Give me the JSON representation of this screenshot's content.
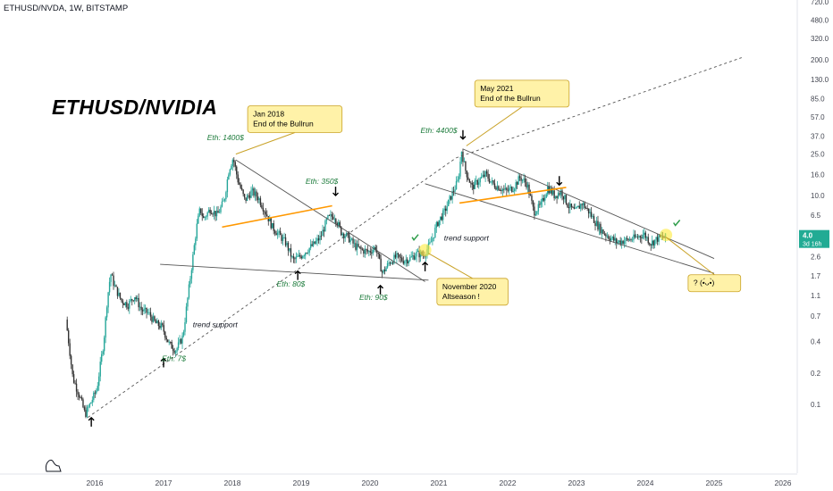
{
  "header": {
    "symbol_line": "ETHUSD/NVDA, 1W, BITSTAMP"
  },
  "chart_data": {
    "type": "candlestick",
    "title": "ETHUSD/NVIDIA",
    "y_scale": "log",
    "ylim": [
      0.05,
      700
    ],
    "xlim": [
      2015.5,
      2026.5
    ],
    "y_ticks": [
      "720.0",
      "480.0",
      "320.0",
      "200.0",
      "130.0",
      "85.0",
      "57.0",
      "37.0",
      "25.0",
      "16.0",
      "10.0",
      "6.5",
      "2.6",
      "1.7",
      "1.1",
      "0.7",
      "0.4",
      "0.2",
      "0.1"
    ],
    "y_tick_values": [
      720,
      480,
      320,
      200,
      130,
      85,
      57,
      37,
      25,
      16,
      10,
      6.5,
      2.6,
      1.7,
      1.1,
      0.7,
      0.4,
      0.2,
      0.1
    ],
    "x_ticks": [
      "2016",
      "2017",
      "2018",
      "2019",
      "2020",
      "2021",
      "2022",
      "2023",
      "2024",
      "2025",
      "2026"
    ],
    "x_tick_values": [
      2016,
      2017,
      2018,
      2019,
      2020,
      2021,
      2022,
      2023,
      2024,
      2025,
      2026
    ],
    "colors": {
      "up": "#26a69a",
      "down": "#333333",
      "orange_line": "#ff9800",
      "trend_line": "#555555",
      "label_bg": "#fff2a8",
      "label_border": "#c9a227",
      "green_text": "#1b7a3a",
      "current_price_bg": "#22ab94"
    },
    "price_path": [
      [
        2015.6,
        0.65
      ],
      [
        2015.65,
        0.35
      ],
      [
        2015.7,
        0.18
      ],
      [
        2015.8,
        0.12
      ],
      [
        2015.88,
        0.08
      ],
      [
        2015.95,
        0.1
      ],
      [
        2016.05,
        0.14
      ],
      [
        2016.15,
        0.4
      ],
      [
        2016.2,
        1.0
      ],
      [
        2016.25,
        1.8
      ],
      [
        2016.3,
        1.4
      ],
      [
        2016.4,
        1.0
      ],
      [
        2016.5,
        0.9
      ],
      [
        2016.6,
        1.1
      ],
      [
        2016.7,
        0.8
      ],
      [
        2016.8,
        0.75
      ],
      [
        2016.9,
        0.6
      ],
      [
        2017.0,
        0.55
      ],
      [
        2017.1,
        0.38
      ],
      [
        2017.2,
        0.33
      ],
      [
        2017.3,
        0.45
      ],
      [
        2017.4,
        1.5
      ],
      [
        2017.5,
        5.0
      ],
      [
        2017.55,
        7.5
      ],
      [
        2017.6,
        6.0
      ],
      [
        2017.7,
        7.5
      ],
      [
        2017.8,
        6.5
      ],
      [
        2017.9,
        9.0
      ],
      [
        2017.97,
        18.0
      ],
      [
        2018.03,
        23.0
      ],
      [
        2018.1,
        14.0
      ],
      [
        2018.2,
        9.0
      ],
      [
        2018.3,
        11.0
      ],
      [
        2018.4,
        9.5
      ],
      [
        2018.5,
        7.0
      ],
      [
        2018.6,
        5.0
      ],
      [
        2018.7,
        4.2
      ],
      [
        2018.8,
        3.5
      ],
      [
        2018.9,
        2.4
      ],
      [
        2019.0,
        2.6
      ],
      [
        2019.1,
        3.0
      ],
      [
        2019.2,
        3.4
      ],
      [
        2019.3,
        4.0
      ],
      [
        2019.4,
        6.0
      ],
      [
        2019.5,
        6.5
      ],
      [
        2019.6,
        4.5
      ],
      [
        2019.7,
        4.0
      ],
      [
        2019.8,
        3.3
      ],
      [
        2019.9,
        3.0
      ],
      [
        2020.0,
        2.9
      ],
      [
        2020.1,
        3.2
      ],
      [
        2020.2,
        1.8
      ],
      [
        2020.3,
        2.3
      ],
      [
        2020.4,
        2.6
      ],
      [
        2020.5,
        2.4
      ],
      [
        2020.6,
        2.5
      ],
      [
        2020.7,
        2.8
      ],
      [
        2020.8,
        2.7
      ],
      [
        2020.9,
        3.5
      ],
      [
        2021.0,
        5.5
      ],
      [
        2021.1,
        7.0
      ],
      [
        2021.2,
        10.0
      ],
      [
        2021.3,
        14.0
      ],
      [
        2021.35,
        27.0
      ],
      [
        2021.4,
        18.0
      ],
      [
        2021.5,
        12.0
      ],
      [
        2021.6,
        14.0
      ],
      [
        2021.7,
        16.0
      ],
      [
        2021.8,
        13.0
      ],
      [
        2021.9,
        12.0
      ],
      [
        2022.0,
        11.0
      ],
      [
        2022.1,
        12.0
      ],
      [
        2022.2,
        15.0
      ],
      [
        2022.3,
        13.0
      ],
      [
        2022.4,
        7.0
      ],
      [
        2022.5,
        8.0
      ],
      [
        2022.6,
        12.0
      ],
      [
        2022.7,
        10.0
      ],
      [
        2022.8,
        11.0
      ],
      [
        2022.9,
        8.0
      ],
      [
        2023.0,
        7.0
      ],
      [
        2023.1,
        8.5
      ],
      [
        2023.2,
        7.0
      ],
      [
        2023.3,
        5.5
      ],
      [
        2023.4,
        4.5
      ],
      [
        2023.5,
        4.0
      ],
      [
        2023.6,
        3.6
      ],
      [
        2023.7,
        3.7
      ],
      [
        2023.8,
        3.8
      ],
      [
        2023.9,
        4.0
      ],
      [
        2024.0,
        4.3
      ],
      [
        2024.1,
        3.5
      ],
      [
        2024.2,
        3.9
      ],
      [
        2024.3,
        4.0
      ]
    ],
    "trend_lines": [
      {
        "from": [
          2015.9,
          0.075
        ],
        "to": [
          2021.25,
          23.0
        ],
        "style": "dashed"
      },
      {
        "from": [
          2021.25,
          23.0
        ],
        "to": [
          2025.4,
          210.0
        ],
        "style": "dashed"
      },
      {
        "from": [
          2018.05,
          22.0
        ],
        "to": [
          2020.8,
          1.5
        ],
        "style": "solid"
      },
      {
        "from": [
          2016.95,
          2.2
        ],
        "to": [
          2020.85,
          1.55
        ],
        "style": "solid"
      },
      {
        "from": [
          2021.35,
          28.0
        ],
        "to": [
          2025.0,
          2.5
        ],
        "style": "solid"
      },
      {
        "from": [
          2020.8,
          13.0
        ],
        "to": [
          2025.0,
          1.8
        ],
        "style": "solid"
      }
    ],
    "orange_lines": [
      {
        "from": [
          2017.85,
          5.0
        ],
        "to": [
          2019.45,
          8.0
        ]
      },
      {
        "from": [
          2021.3,
          8.5
        ],
        "to": [
          2022.85,
          12.0
        ]
      }
    ],
    "arrows": [
      {
        "at": [
          2015.95,
          0.065
        ],
        "dir": "up"
      },
      {
        "at": [
          2017.0,
          0.24
        ],
        "dir": "up"
      },
      {
        "at": [
          2018.95,
          1.65
        ],
        "dir": "up"
      },
      {
        "at": [
          2020.15,
          1.2
        ],
        "dir": "up"
      },
      {
        "at": [
          2020.8,
          2.0
        ],
        "dir": "up"
      },
      {
        "at": [
          2019.5,
          11.5
        ],
        "dir": "down"
      },
      {
        "at": [
          2021.35,
          40.0
        ],
        "dir": "down"
      },
      {
        "at": [
          2022.75,
          14.5
        ],
        "dir": "down"
      }
    ],
    "green_labels": [
      {
        "text": "Eth: 1400$",
        "at": [
          2017.9,
          34.0
        ]
      },
      {
        "text": "Eth: 350$",
        "at": [
          2019.3,
          13.0
        ]
      },
      {
        "text": "Eth: 80$",
        "at": [
          2018.85,
          1.35
        ]
      },
      {
        "text": "Eth: 90$",
        "at": [
          2020.05,
          1.0
        ]
      },
      {
        "text": "Eth: 7$",
        "at": [
          2017.15,
          0.26
        ]
      },
      {
        "text": "Eth: 4400$",
        "at": [
          2021.0,
          40.0
        ]
      }
    ],
    "checkmarks": [
      {
        "at": [
          2020.65,
          4.0
        ]
      },
      {
        "at": [
          2024.45,
          5.5
        ]
      }
    ],
    "plain_labels": [
      {
        "text": "trend support",
        "at": [
          2017.75,
          0.55
        ]
      },
      {
        "text": "trend support",
        "at": [
          2021.4,
          3.7
        ]
      }
    ],
    "callouts": [
      {
        "lines": [
          "Jan 2018",
          "End of the Bullrun"
        ],
        "box_at": [
          2018.3,
          54.0
        ],
        "pointer_to": [
          2018.05,
          25.0
        ]
      },
      {
        "lines": [
          "May 2021",
          "End of the Bullrun"
        ],
        "box_at": [
          2021.6,
          95.0
        ],
        "pointer_to": [
          2021.4,
          30.0
        ]
      },
      {
        "lines": [
          "November 2020",
          "Altseason !"
        ],
        "box_at": [
          2021.05,
          1.2
        ],
        "pointer_to": [
          2020.85,
          2.8
        ]
      },
      {
        "lines": [
          "? (•̀ᴗ•́)"
        ],
        "box_at": [
          2024.7,
          1.45
        ],
        "pointer_to": [
          2024.3,
          4.0
        ],
        "emoticon_text": "? (•́ᴗ•̀)"
      }
    ],
    "highlights": [
      {
        "at": [
          2020.8,
          3.0
        ]
      },
      {
        "at": [
          2024.3,
          4.2
        ]
      }
    ],
    "current_price": {
      "value": "4.0",
      "countdown": "3d 16h"
    }
  }
}
